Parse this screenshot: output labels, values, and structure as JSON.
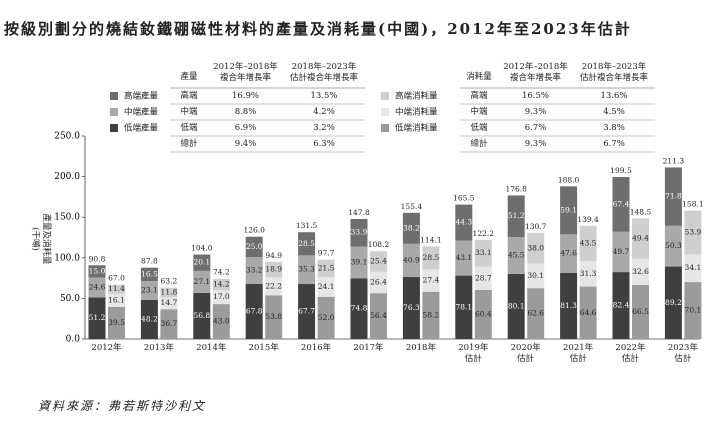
{
  "title": "按級別劃分的燒結釹鐵硼磁性材料的產量及消耗量(中國)，2012年至2023年估計",
  "source": "資料來源：弗若斯特沙利文",
  "tables": [
    {
      "header": [
        "產量",
        "2012年–2018年\n複合年增長率",
        "2018年–2023年\n估計複合年增長率"
      ],
      "rows": [
        [
          "高端",
          "16.9%",
          "13.5%"
        ],
        [
          "中端",
          "8.8%",
          "4.2%"
        ],
        [
          "低端",
          "6.9%",
          "3.2%"
        ],
        [
          "總計",
          "9.4%",
          "6.3%"
        ]
      ]
    },
    {
      "header": [
        "消耗量",
        "2012年–2018年\n複合年增長率",
        "2018年–2023年\n估計複合年增長率"
      ],
      "rows": [
        [
          "高端",
          "16.5%",
          "13.6%"
        ],
        [
          "中端",
          "9.3%",
          "4.5%"
        ],
        [
          "低端",
          "6.7%",
          "3.8%"
        ],
        [
          "總計",
          "9.3%",
          "6.7%"
        ]
      ]
    }
  ],
  "chart_data": {
    "type": "stacked_bar",
    "ylabel": "產量及消耗量\n(千噸)",
    "categories": [
      "2012年",
      "2013年",
      "2014年",
      "2015年",
      "2016年",
      "2017年",
      "2018年",
      "2019年\n估計",
      "2020年\n估計",
      "2021年\n估計",
      "2022年\n估計",
      "2023年\n估計"
    ],
    "ylim": [
      0,
      250
    ],
    "yticks": [
      {
        "value": 0,
        "label": "0.0"
      },
      {
        "value": 50,
        "label": "50.0"
      },
      {
        "value": 100,
        "label": "100.0"
      },
      {
        "value": 150,
        "label": "150.0"
      },
      {
        "value": 200,
        "label": "200.0"
      },
      {
        "value": 250,
        "label": "250.0"
      }
    ],
    "series": [
      {
        "name": "低端產量",
        "color": "#3f3f3f",
        "stack": 0,
        "values": [
          51.2,
          48.2,
          56.8,
          67.8,
          67.7,
          74.8,
          76.3,
          78.1,
          80.1,
          81.3,
          82.4,
          89.2
        ],
        "value_labels": [
          "51.2",
          "48.2",
          "56.8",
          "67.8",
          "67.7",
          "74.8",
          "76.3",
          "78.1",
          "80.1",
          "81.3",
          "82.4",
          "89.2"
        ]
      },
      {
        "name": "中端產量",
        "color": "#a9a9a9",
        "stack": 0,
        "values": [
          24.6,
          23.1,
          27.1,
          33.2,
          35.3,
          39.1,
          40.9,
          43.1,
          45.5,
          47.6,
          49.7,
          50.3
        ],
        "value_labels": [
          "24.6",
          "23.1",
          "27.1",
          "33.2",
          "35.3",
          "39.1",
          "40.9",
          "43.1",
          "45.5",
          "47.6",
          "49.7",
          "50.3"
        ]
      },
      {
        "name": "高端產量",
        "color": "#6e6e6e",
        "stack": 0,
        "values": [
          15,
          16.5,
          20.1,
          25,
          28.5,
          33.9,
          38.2,
          44.3,
          51.2,
          59.1,
          67.4,
          71.8
        ],
        "value_labels": [
          "15.0",
          "16.5",
          "20.1",
          "25.0",
          "28.5",
          "33.9",
          "38.2",
          "44.3",
          "51.2",
          "59.1",
          "67.4",
          "71.8"
        ]
      },
      {
        "name": "低端消耗量",
        "color": "#9b9b9b",
        "stack": 1,
        "values": [
          39.5,
          36.7,
          43,
          53.8,
          52,
          56.4,
          58.2,
          60.4,
          62.6,
          64.6,
          66.5,
          70.1
        ],
        "value_labels": [
          "39.5",
          "36.7",
          "43.0",
          "53.8",
          "52.0",
          "56.4",
          "58.2",
          "60.4",
          "62.6",
          "64.6",
          "66.5",
          "70.1"
        ]
      },
      {
        "name": "中端消耗量",
        "color": "#e6e6e6",
        "stack": 1,
        "values": [
          16.1,
          14.7,
          17,
          22.2,
          24.1,
          26.4,
          27.4,
          28.7,
          30.1,
          31.3,
          32.6,
          34.1
        ],
        "value_labels": [
          "16.1",
          "14.7",
          "17.0",
          "22.2",
          "24.1",
          "26.4",
          "27.4",
          "28.7",
          "30.1",
          "31.3",
          "32.6",
          "34.1"
        ]
      },
      {
        "name": "高端消耗量",
        "color": "#cfcfcf",
        "stack": 1,
        "values": [
          11.4,
          11.8,
          14.2,
          18.9,
          21.5,
          25.4,
          28.5,
          33.1,
          38,
          43.5,
          49.4,
          53.9
        ],
        "value_labels": [
          "11.4",
          "11.8",
          "14.2",
          "18.9",
          "21.5",
          "25.4",
          "28.5",
          "33.1",
          "38.0",
          "43.5",
          "49.4",
          "53.9"
        ]
      }
    ],
    "totals": [
      [
        90.8,
        87.8,
        104,
        126,
        131.5,
        147.8,
        155.4,
        165.5,
        176.8,
        188,
        199.5,
        211.3
      ],
      [
        67,
        63.2,
        74.2,
        94.9,
        97.7,
        108.2,
        114.1,
        122.2,
        130.7,
        139.4,
        148.5,
        158.1
      ]
    ],
    "total_labels": [
      [
        "90.8",
        "87.8",
        "104.0",
        "126.0",
        "131.5",
        "147.8",
        "155.4",
        "165.5",
        "176.8",
        "188.0",
        "199.5",
        "211.3"
      ],
      [
        "67.0",
        "63.2",
        "74.2",
        "94.9",
        "97.7",
        "108.2",
        "114.1",
        "122.2",
        "130.7",
        "139.4",
        "148.5",
        "158.1"
      ]
    ]
  }
}
